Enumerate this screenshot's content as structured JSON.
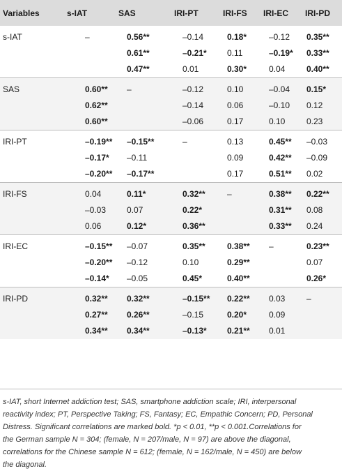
{
  "table": {
    "headers": [
      "Variables",
      "s-IAT",
      "SAS",
      "IRI-PT",
      "IRI-FS",
      "IRI-EC",
      "IRI-PD"
    ],
    "groups": [
      {
        "name": "s-IAT",
        "rows": [
          [
            {
              "t": "–",
              "b": false
            },
            {
              "t": "0.56**",
              "b": true
            },
            {
              "t": "–0.14",
              "b": false
            },
            {
              "t": "0.18*",
              "b": true
            },
            {
              "t": "–0.12",
              "b": false
            },
            {
              "t": "0.35**",
              "b": true
            }
          ],
          [
            {
              "t": "",
              "b": false
            },
            {
              "t": "0.61**",
              "b": true
            },
            {
              "t": "–0.21*",
              "b": true
            },
            {
              "t": "0.11",
              "b": false
            },
            {
              "t": "–0.19*",
              "b": true
            },
            {
              "t": "0.33**",
              "b": true
            }
          ],
          [
            {
              "t": "",
              "b": false
            },
            {
              "t": "0.47**",
              "b": true
            },
            {
              "t": "0.01",
              "b": false
            },
            {
              "t": "0.30*",
              "b": true
            },
            {
              "t": "0.04",
              "b": false
            },
            {
              "t": "0.40**",
              "b": true
            }
          ]
        ]
      },
      {
        "name": "SAS",
        "rows": [
          [
            {
              "t": "0.60**",
              "b": true
            },
            {
              "t": "–",
              "b": false
            },
            {
              "t": "–0.12",
              "b": false
            },
            {
              "t": "0.10",
              "b": false
            },
            {
              "t": "–0.04",
              "b": false
            },
            {
              "t": "0.15*",
              "b": true
            }
          ],
          [
            {
              "t": "0.62**",
              "b": true
            },
            {
              "t": "",
              "b": false
            },
            {
              "t": "–0.14",
              "b": false
            },
            {
              "t": "0.06",
              "b": false
            },
            {
              "t": "–0.10",
              "b": false
            },
            {
              "t": "0.12",
              "b": false
            }
          ],
          [
            {
              "t": "0.60**",
              "b": true
            },
            {
              "t": "",
              "b": false
            },
            {
              "t": "–0.06",
              "b": false
            },
            {
              "t": "0.17",
              "b": false
            },
            {
              "t": "0.10",
              "b": false
            },
            {
              "t": "0.23",
              "b": false
            }
          ]
        ]
      },
      {
        "name": "IRI-PT",
        "rows": [
          [
            {
              "t": "–0.19**",
              "b": true
            },
            {
              "t": "–0.15**",
              "b": true
            },
            {
              "t": "–",
              "b": false
            },
            {
              "t": "0.13",
              "b": false
            },
            {
              "t": "0.45**",
              "b": true
            },
            {
              "t": "–0.03",
              "b": false
            }
          ],
          [
            {
              "t": "–0.17*",
              "b": true
            },
            {
              "t": "–0.11",
              "b": false
            },
            {
              "t": "",
              "b": false
            },
            {
              "t": "0.09",
              "b": false
            },
            {
              "t": "0.42**",
              "b": true
            },
            {
              "t": "–0.09",
              "b": false
            }
          ],
          [
            {
              "t": "–0.20**",
              "b": true
            },
            {
              "t": "–0.17**",
              "b": true
            },
            {
              "t": "",
              "b": false
            },
            {
              "t": "0.17",
              "b": false
            },
            {
              "t": "0.51**",
              "b": true
            },
            {
              "t": "0.02",
              "b": false
            }
          ]
        ]
      },
      {
        "name": "IRI-FS",
        "rows": [
          [
            {
              "t": "0.04",
              "b": false
            },
            {
              "t": "0.11*",
              "b": true
            },
            {
              "t": "0.32**",
              "b": true
            },
            {
              "t": "–",
              "b": false
            },
            {
              "t": "0.38**",
              "b": true
            },
            {
              "t": "0.22**",
              "b": true
            }
          ],
          [
            {
              "t": "–0.03",
              "b": false
            },
            {
              "t": "0.07",
              "b": false
            },
            {
              "t": "0.22*",
              "b": true
            },
            {
              "t": "",
              "b": false
            },
            {
              "t": "0.31**",
              "b": true
            },
            {
              "t": "0.08",
              "b": false
            }
          ],
          [
            {
              "t": "0.06",
              "b": false
            },
            {
              "t": "0.12*",
              "b": true
            },
            {
              "t": "0.36**",
              "b": true
            },
            {
              "t": "",
              "b": false
            },
            {
              "t": "0.33**",
              "b": true
            },
            {
              "t": "0.24",
              "b": false
            }
          ]
        ]
      },
      {
        "name": "IRI-EC",
        "rows": [
          [
            {
              "t": "–0.15**",
              "b": true
            },
            {
              "t": "–0.07",
              "b": false
            },
            {
              "t": "0.35**",
              "b": true
            },
            {
              "t": "0.38**",
              "b": true
            },
            {
              "t": "–",
              "b": false
            },
            {
              "t": "0.23**",
              "b": true
            }
          ],
          [
            {
              "t": "–0.20**",
              "b": true
            },
            {
              "t": "–0.12",
              "b": false
            },
            {
              "t": "0.10",
              "b": false
            },
            {
              "t": "0.29**",
              "b": true
            },
            {
              "t": "",
              "b": false
            },
            {
              "t": "0.07",
              "b": false
            }
          ],
          [
            {
              "t": "–0.14*",
              "b": true
            },
            {
              "t": "–0.05",
              "b": false
            },
            {
              "t": "0.45*",
              "b": true
            },
            {
              "t": "0.40**",
              "b": true
            },
            {
              "t": "",
              "b": false
            },
            {
              "t": "0.26*",
              "b": true
            }
          ]
        ]
      },
      {
        "name": "IRI-PD",
        "rows": [
          [
            {
              "t": "0.32**",
              "b": true
            },
            {
              "t": "0.32**",
              "b": true
            },
            {
              "t": "–0.15**",
              "b": true
            },
            {
              "t": "0.22**",
              "b": true
            },
            {
              "t": "0.03",
              "b": false
            },
            {
              "t": "–",
              "b": false
            }
          ],
          [
            {
              "t": "0.27**",
              "b": true
            },
            {
              "t": "0.26**",
              "b": true
            },
            {
              "t": "–0.15",
              "b": false
            },
            {
              "t": "0.20*",
              "b": true
            },
            {
              "t": "0.09",
              "b": false
            },
            {
              "t": "",
              "b": false
            }
          ],
          [
            {
              "t": "0.34**",
              "b": true
            },
            {
              "t": "0.34**",
              "b": true
            },
            {
              "t": "–0.13*",
              "b": true
            },
            {
              "t": "0.21**",
              "b": true
            },
            {
              "t": "0.01",
              "b": false
            },
            {
              "t": "",
              "b": false
            }
          ]
        ]
      }
    ]
  },
  "note": {
    "lines": [
      "s-IAT, short Internet addiction test; SAS, smartphone addiction scale; IRI, interpersonal",
      "reactivity index; PT, Perspective Taking; FS, Fantasy; EC, Empathic Concern; PD, Personal",
      "Distress. Significant correlations are marked bold. *p < 0.01, **p < 0.001.Correlations for",
      "the German sample N = 304; (female, N =  207/male, N = 97) are above the diagonal,",
      "correlations for the Chinese sample N = 612; (female, N = 162/male, N = 450) are below",
      "the diagonal."
    ]
  }
}
